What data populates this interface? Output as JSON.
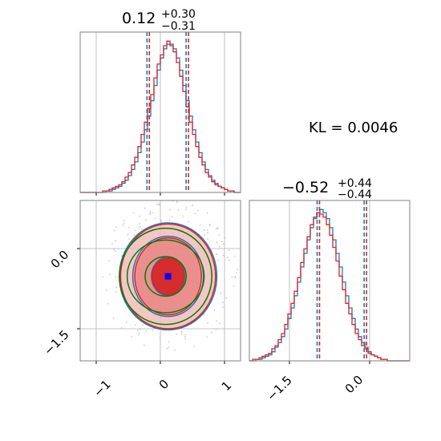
{
  "chart_data": [
    {
      "type": "histogram",
      "panel": "top-left",
      "title": {
        "value": "0.12",
        "plus": "+0.30",
        "minus": "−0.31"
      },
      "x_range": [
        -1.25,
        1.25
      ],
      "grid": true,
      "quantiles": [
        -0.19,
        0.12,
        0.42
      ],
      "bins": 50,
      "series": [
        {
          "color": "#1f77b4",
          "counts": [
            0,
            0,
            0,
            0,
            0,
            0,
            0,
            0,
            1,
            1,
            2,
            3,
            4,
            6,
            8,
            11,
            15,
            20,
            26,
            33,
            41,
            50,
            60,
            70,
            80,
            88,
            94,
            97,
            97,
            94,
            88,
            80,
            70,
            60,
            50,
            41,
            33,
            26,
            20,
            15,
            11,
            8,
            6,
            4,
            3,
            2,
            1,
            1,
            0,
            0
          ]
        },
        {
          "color": "#d62728",
          "counts": [
            0,
            0,
            0,
            0,
            0,
            0,
            0,
            1,
            1,
            2,
            3,
            4,
            5,
            7,
            10,
            13,
            18,
            23,
            30,
            38,
            46,
            55,
            64,
            75,
            84,
            90,
            96,
            99,
            96,
            92,
            85,
            76,
            66,
            56,
            46,
            38,
            30,
            23,
            18,
            13,
            10,
            7,
            5,
            4,
            3,
            2,
            1,
            1,
            0,
            0
          ]
        }
      ]
    },
    {
      "type": "histogram",
      "panel": "bottom-right",
      "title": {
        "value": "−0.52",
        "plus": "+0.44",
        "minus": "−0.44"
      },
      "x_range": [
        -2.25,
        0.75
      ],
      "xticks": [
        "−1.5",
        "0.0"
      ],
      "grid": true,
      "quantiles": [
        -0.96,
        -0.52,
        -0.08
      ],
      "bins": 50,
      "series": [
        {
          "color": "#1f77b4",
          "counts": [
            0,
            0,
            1,
            1,
            2,
            3,
            4,
            6,
            9,
            12,
            16,
            21,
            28,
            35,
            43,
            52,
            62,
            71,
            80,
            88,
            94,
            98,
            100,
            98,
            94,
            88,
            80,
            71,
            62,
            52,
            43,
            35,
            28,
            21,
            16,
            12,
            9,
            6,
            4,
            3,
            2,
            1,
            1,
            0,
            0,
            0,
            0,
            0,
            0,
            0
          ]
        },
        {
          "color": "#d62728",
          "counts": [
            0,
            1,
            1,
            2,
            3,
            4,
            5,
            8,
            10,
            14,
            18,
            24,
            31,
            38,
            46,
            55,
            65,
            74,
            82,
            90,
            95,
            98,
            97,
            95,
            90,
            83,
            75,
            66,
            56,
            47,
            38,
            31,
            24,
            18,
            14,
            10,
            8,
            5,
            4,
            3,
            2,
            1,
            1,
            0,
            0,
            0,
            0,
            0,
            0,
            0
          ]
        }
      ]
    },
    {
      "type": "contour",
      "panel": "bottom-left",
      "x_range": [
        -1.25,
        1.25
      ],
      "y_range": [
        -2.1,
        0.9
      ],
      "xticks": [
        "−1",
        "0",
        "1"
      ],
      "yticks": [
        "0.0",
        "−1.5"
      ],
      "grid": true,
      "center": {
        "x": 0.12,
        "y": -0.52
      },
      "contours": [
        {
          "color": "#1f77b4",
          "levels": [
            {
              "rx": 0.26,
              "ry": 0.36
            },
            {
              "rx": 0.55,
              "ry": 0.75
            },
            {
              "rx": 0.76,
              "ry": 1.0
            }
          ]
        },
        {
          "color": "#d62728",
          "levels": [
            {
              "rx": 0.25,
              "ry": 0.34
            },
            {
              "rx": 0.52,
              "ry": 0.72
            },
            {
              "rx": 0.74,
              "ry": 0.98
            }
          ]
        },
        {
          "color": "#008000",
          "levels": [
            {
              "rx": 0.32,
              "ry": 0.37
            },
            {
              "rx": 0.6,
              "ry": 0.68
            },
            {
              "rx": 0.72,
              "ry": 0.9
            }
          ]
        }
      ]
    }
  ],
  "annotation": {
    "text": "KL = 0.0046"
  },
  "colors": {
    "blue": "#1f77b4",
    "red": "#d62728",
    "green": "#008000",
    "grid": "#b0b0b0",
    "frame": "#808080"
  }
}
